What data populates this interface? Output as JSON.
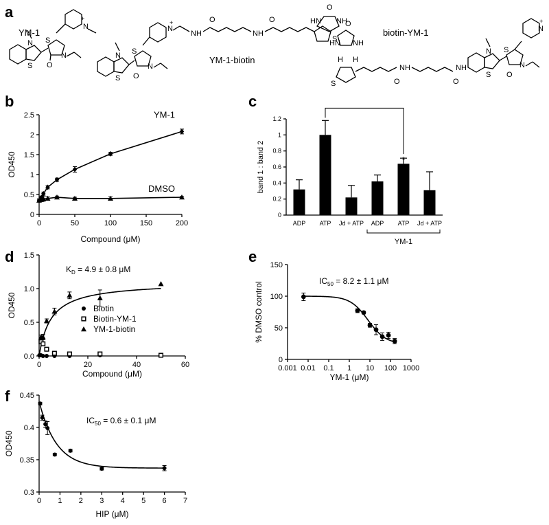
{
  "panel_labels": {
    "a": "a",
    "b": "b",
    "c": "c",
    "d": "d",
    "e": "e",
    "f": "f"
  },
  "structures": {
    "ym1": "YM-1",
    "ym1_biotin": "YM-1-biotin",
    "biotin_ym1": "biotin-YM-1",
    "atom_s": "S",
    "atom_n": "N",
    "atom_n_plus": "N",
    "plus": "+",
    "atom_o": "O",
    "atom_nh": "NH",
    "atom_hn": "HN",
    "atom_h": "H",
    "methyl": "\\"
  },
  "chart_data": [
    {
      "id": "b",
      "type": "line",
      "title": "",
      "xlabel": "Compound (μM)",
      "ylabel": "OD450",
      "xlim": [
        0,
        200
      ],
      "ylim": [
        0,
        2.5
      ],
      "xticks": [
        0,
        50,
        100,
        150,
        200
      ],
      "yticks": [
        0,
        0.5,
        1,
        1.5,
        2,
        2.5
      ],
      "ytick_labels": [
        "0",
        "0.5",
        "1",
        "1.5",
        "2",
        "2.5"
      ],
      "series": [
        {
          "name": "YM-1",
          "marker": "diamond",
          "x": [
            0,
            3,
            6,
            12,
            25,
            50,
            100,
            200
          ],
          "y": [
            0.35,
            0.42,
            0.52,
            0.68,
            0.87,
            1.13,
            1.52,
            2.08
          ],
          "err": [
            0.04,
            0.04,
            0.04,
            0.04,
            0.04,
            0.07,
            0.04,
            0.06
          ]
        },
        {
          "name": "DMSO",
          "marker": "triangle",
          "x": [
            0,
            3,
            6,
            12,
            25,
            50,
            100,
            200
          ],
          "y": [
            0.35,
            0.37,
            0.39,
            0.4,
            0.43,
            0.4,
            0.4,
            0.43
          ],
          "err": [
            0.03,
            0.05,
            0.06,
            0.04,
            0.03,
            0.03,
            0.04,
            0.02
          ]
        }
      ]
    },
    {
      "id": "c",
      "type": "bar",
      "title": "",
      "ylabel": "band 1 : band 2",
      "ylim": [
        0,
        1.2
      ],
      "yticks": [
        0,
        0.2,
        0.4,
        0.6,
        0.8,
        1,
        1.2
      ],
      "ytick_labels": [
        "0",
        "0.2",
        "0.4",
        "0.6",
        "0.8",
        "1",
        "1.2"
      ],
      "categories": [
        "ADP",
        "ATP",
        "Jd + ATP",
        "ADP",
        "ATP",
        "Jd + ATP"
      ],
      "values": [
        0.32,
        1.0,
        0.22,
        0.42,
        0.64,
        0.31
      ],
      "errors": [
        0.12,
        0.18,
        0.15,
        0.08,
        0.07,
        0.23
      ],
      "group_label": "YM-1",
      "significance_mark": "*"
    },
    {
      "id": "d",
      "type": "scatter",
      "title": "",
      "annotation_main": "K",
      "annotation_sub": "D",
      "annotation_rest": " = 4.9 ± 0.8 μM",
      "xlabel": "Compound (μM)",
      "ylabel": "OD450",
      "xlim": [
        0,
        60
      ],
      "ylim": [
        0,
        1.5
      ],
      "xticks": [
        0,
        20,
        40,
        60
      ],
      "yticks": [
        0,
        0.5,
        1.0,
        1.5
      ],
      "ytick_labels": [
        "0.0",
        "0.5",
        "1.0",
        "1.5"
      ],
      "legend": [
        "Biotin",
        "Biotin-YM-1",
        "YM-1-biotin"
      ],
      "series": [
        {
          "name": "Biotin",
          "marker": "circle",
          "x": [
            0.1,
            0.2,
            0.4,
            0.8,
            1.6,
            3.1,
            6.3,
            12.5,
            25,
            50
          ],
          "y": [
            0.01,
            0.01,
            0.01,
            0.01,
            0.0,
            0.0,
            0.0,
            0.0,
            0.01,
            0.01
          ],
          "err": [
            0,
            0,
            0,
            0,
            0,
            0,
            0,
            0,
            0,
            0
          ]
        },
        {
          "name": "Biotin-YM-1",
          "marker": "square",
          "x": [
            0.8,
            1.6,
            3.1,
            6.3,
            12.5,
            25,
            50
          ],
          "y": [
            0.21,
            0.18,
            0.1,
            0.04,
            0.03,
            0.03,
            0.01
          ],
          "err": [
            0.03,
            0.03,
            0.02,
            0.02,
            0.02,
            0.02,
            0.01
          ]
        },
        {
          "name": "YM-1-biotin",
          "marker": "triangle",
          "x": [
            0.8,
            1.6,
            3.1,
            6.3,
            12.5,
            25,
            50
          ],
          "y": [
            0.28,
            0.28,
            0.52,
            0.66,
            0.9,
            0.86,
            1.07
          ],
          "err": [
            0.03,
            0.04,
            0.03,
            0.05,
            0.05,
            0.12,
            0.0
          ]
        }
      ],
      "fit": {
        "model": "one-site binding",
        "bmax": 1.1,
        "kd": 4.9
      }
    },
    {
      "id": "e",
      "type": "scatter",
      "title": "",
      "annotation_main": "IC",
      "annotation_sub": "50",
      "annotation_rest": " = 8.2 ± 1.1 μM",
      "xlabel": "YM-1 (μM)",
      "ylabel": "% DMSO control",
      "xscale": "log",
      "xlim": [
        0.001,
        1000
      ],
      "ylim": [
        0,
        150
      ],
      "xticks": [
        0.001,
        0.01,
        0.1,
        1,
        10,
        100,
        1000
      ],
      "xtick_labels": [
        "0.001",
        "0.01",
        "0.1",
        "1",
        "10",
        "100",
        "1000"
      ],
      "yticks": [
        0,
        50,
        100,
        150
      ],
      "ytick_labels": [
        "0",
        "50",
        "100",
        "150"
      ],
      "series": [
        {
          "name": "",
          "marker": "circle",
          "x": [
            0.006,
            2.5,
            5,
            10,
            20,
            40,
            80,
            160
          ],
          "y": [
            99,
            77,
            74,
            54,
            47,
            36,
            38,
            29
          ],
          "err": [
            6,
            3,
            2,
            3,
            8,
            6,
            5,
            4
          ]
        }
      ],
      "fit": {
        "model": "sigmoidal dose-response",
        "top": 100,
        "bottom": 24,
        "ic50": 8.2,
        "hill": 1
      }
    },
    {
      "id": "f",
      "type": "scatter",
      "title": "",
      "annotation_main": "IC",
      "annotation_sub": "50",
      "annotation_rest": " = 0.6 ± 0.1 μM",
      "xlabel": "HIP (μM)",
      "ylabel": "OD450",
      "xlim": [
        0,
        7
      ],
      "ylim": [
        0.3,
        0.45
      ],
      "xticks": [
        0,
        1,
        2,
        3,
        4,
        5,
        6,
        7
      ],
      "yticks": [
        0.3,
        0.35,
        0.4,
        0.45
      ],
      "ytick_labels": [
        "0.3",
        "0.35",
        "0.4",
        "0.45"
      ],
      "series": [
        {
          "name": "",
          "marker": "circle",
          "x": [
            0.05,
            0.15,
            0.3,
            0.4,
            0.75,
            1.5,
            3,
            6
          ],
          "y": [
            0.437,
            0.415,
            0.405,
            0.399,
            0.358,
            0.364,
            0.336,
            0.337
          ],
          "err": [
            0.002,
            0.004,
            0.005,
            0.01,
            0.002,
            0.002,
            0.002,
            0.004
          ]
        }
      ],
      "fit": {
        "model": "exponential decay",
        "y0": 0.44,
        "plateau": 0.337,
        "k": 1.2
      }
    }
  ]
}
